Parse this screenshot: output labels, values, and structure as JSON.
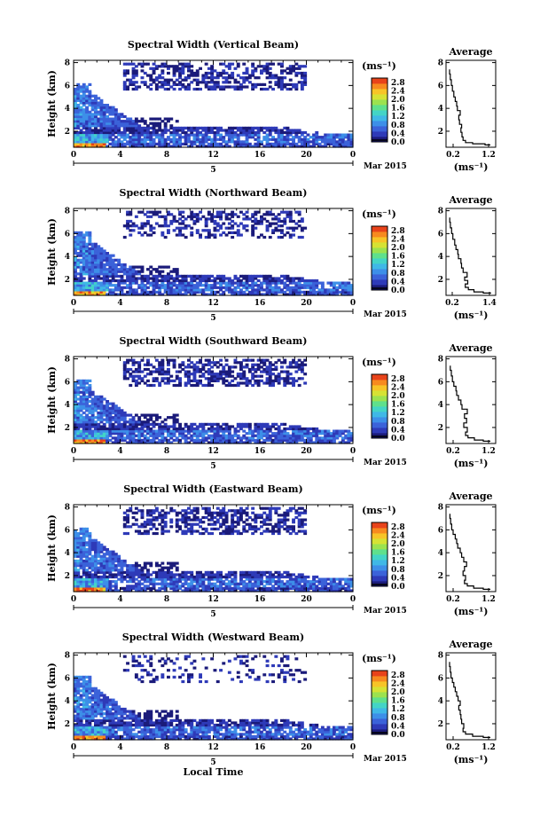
{
  "chart_data": [
    {
      "type": "heatmap",
      "title": "Spectral Width (Vertical Beam)",
      "ylabel": "Height (km)",
      "x_ticks": [
        "0",
        "4",
        "8",
        "12",
        "16",
        "20",
        "0"
      ],
      "xlim": [
        0,
        24
      ],
      "y_ticks": [
        "2",
        "4",
        "6",
        "8"
      ],
      "ylim": [
        0.6,
        8.2
      ],
      "date_day": "5",
      "date_label": "Mar 2015",
      "colorbar": {
        "unit": "(ms⁻¹)",
        "ticks": [
          "0.0",
          "0.4",
          "0.8",
          "1.2",
          "1.6",
          "2.0",
          "2.4",
          "2.8"
        ],
        "range": [
          0,
          3.0
        ]
      },
      "average": {
        "title": "Average",
        "xlabel": "(ms⁻¹)",
        "x_ticks": [
          "0.2",
          "1.2"
        ],
        "xlim": [
          0.0,
          1.4
        ],
        "y_ticks": [
          "2",
          "4",
          "6",
          "8"
        ],
        "ylim": [
          0.6,
          8.2
        ],
        "profile": [
          [
            1.25,
            0.8
          ],
          [
            1.1,
            0.9
          ],
          [
            0.75,
            1.0
          ],
          [
            0.55,
            1.2
          ],
          [
            0.48,
            1.5
          ],
          [
            0.45,
            1.9
          ],
          [
            0.42,
            2.3
          ],
          [
            0.44,
            2.6
          ],
          [
            0.38,
            3.0
          ],
          [
            0.36,
            3.4
          ],
          [
            0.4,
            3.8
          ],
          [
            0.32,
            4.2
          ],
          [
            0.3,
            4.6
          ],
          [
            0.26,
            5.0
          ],
          [
            0.22,
            5.5
          ],
          [
            0.18,
            6.0
          ],
          [
            0.15,
            6.5
          ],
          [
            0.12,
            7.0
          ],
          [
            0.1,
            7.4
          ]
        ]
      }
    },
    {
      "type": "heatmap",
      "title": "Spectral Width (Northward Beam)",
      "ylabel": "Height (km)",
      "x_ticks": [
        "0",
        "4",
        "8",
        "12",
        "16",
        "20",
        "0"
      ],
      "xlim": [
        0,
        24
      ],
      "y_ticks": [
        "2",
        "4",
        "6",
        "8"
      ],
      "ylim": [
        0.6,
        8.2
      ],
      "date_day": "5",
      "date_label": "Mar 2015",
      "colorbar": {
        "unit": "(ms⁻¹)",
        "ticks": [
          "0.0",
          "0.4",
          "0.8",
          "1.2",
          "1.6",
          "2.0",
          "2.4",
          "2.8"
        ],
        "range": [
          0,
          3.0
        ]
      },
      "average": {
        "title": "Average",
        "xlabel": "(ms⁻¹)",
        "x_ticks": [
          "0.2",
          "1.4"
        ],
        "xlim": [
          0.0,
          1.6
        ],
        "y_ticks": [
          "2",
          "4",
          "6",
          "8"
        ],
        "ylim": [
          0.6,
          8.2
        ],
        "profile": [
          [
            1.45,
            0.8
          ],
          [
            1.2,
            0.9
          ],
          [
            0.9,
            1.1
          ],
          [
            0.72,
            1.3
          ],
          [
            0.62,
            1.6
          ],
          [
            0.7,
            1.9
          ],
          [
            0.6,
            2.2
          ],
          [
            0.68,
            2.6
          ],
          [
            0.55,
            3.0
          ],
          [
            0.5,
            3.4
          ],
          [
            0.48,
            3.8
          ],
          [
            0.4,
            4.2
          ],
          [
            0.38,
            4.6
          ],
          [
            0.32,
            5.0
          ],
          [
            0.28,
            5.5
          ],
          [
            0.22,
            6.0
          ],
          [
            0.18,
            6.5
          ],
          [
            0.14,
            7.0
          ],
          [
            0.12,
            7.4
          ]
        ]
      }
    },
    {
      "type": "heatmap",
      "title": "Spectral Width (Southward Beam)",
      "ylabel": "Height (km)",
      "x_ticks": [
        "0",
        "4",
        "8",
        "12",
        "16",
        "20",
        "0"
      ],
      "xlim": [
        0,
        24
      ],
      "y_ticks": [
        "2",
        "4",
        "6",
        "8"
      ],
      "ylim": [
        0.6,
        8.2
      ],
      "date_day": "5",
      "date_label": "Mar 2015",
      "colorbar": {
        "unit": "(ms⁻¹)",
        "ticks": [
          "0.0",
          "0.4",
          "0.8",
          "1.2",
          "1.6",
          "2.0",
          "2.4",
          "2.8"
        ],
        "range": [
          0,
          3.0
        ]
      },
      "average": {
        "title": "Average",
        "xlabel": "(ms⁻¹)",
        "x_ticks": [
          "0.2",
          "1.2"
        ],
        "xlim": [
          0.0,
          1.4
        ],
        "y_ticks": [
          "2",
          "4",
          "6",
          "8"
        ],
        "ylim": [
          0.6,
          8.2
        ],
        "profile": [
          [
            1.25,
            0.8
          ],
          [
            1.05,
            0.9
          ],
          [
            0.8,
            1.1
          ],
          [
            0.62,
            1.3
          ],
          [
            0.55,
            1.6
          ],
          [
            0.6,
            2.0
          ],
          [
            0.5,
            2.4
          ],
          [
            0.58,
            2.8
          ],
          [
            0.52,
            3.2
          ],
          [
            0.6,
            3.6
          ],
          [
            0.45,
            4.0
          ],
          [
            0.42,
            4.4
          ],
          [
            0.35,
            4.8
          ],
          [
            0.3,
            5.2
          ],
          [
            0.28,
            5.6
          ],
          [
            0.22,
            6.0
          ],
          [
            0.18,
            6.5
          ],
          [
            0.15,
            7.0
          ],
          [
            0.12,
            7.4
          ]
        ]
      }
    },
    {
      "type": "heatmap",
      "title": "Spectral Width (Eastward Beam)",
      "ylabel": "Height (km)",
      "x_ticks": [
        "0",
        "4",
        "8",
        "12",
        "16",
        "20",
        "0"
      ],
      "xlim": [
        0,
        24
      ],
      "y_ticks": [
        "2",
        "4",
        "6",
        "8"
      ],
      "ylim": [
        0.6,
        8.2
      ],
      "date_day": "5",
      "date_label": "Mar 2015",
      "colorbar": {
        "unit": "(ms⁻¹)",
        "ticks": [
          "0.0",
          "0.4",
          "0.8",
          "1.2",
          "1.6",
          "2.0",
          "2.4",
          "2.8"
        ],
        "range": [
          0,
          3.0
        ]
      },
      "average": {
        "title": "Average",
        "xlabel": "(ms⁻¹)",
        "x_ticks": [
          "0.2",
          "1.2"
        ],
        "xlim": [
          0.0,
          1.4
        ],
        "y_ticks": [
          "2",
          "4",
          "6",
          "8"
        ],
        "ylim": [
          0.6,
          8.2
        ],
        "profile": [
          [
            1.25,
            0.8
          ],
          [
            1.05,
            0.9
          ],
          [
            0.78,
            1.1
          ],
          [
            0.6,
            1.3
          ],
          [
            0.52,
            1.6
          ],
          [
            0.55,
            2.0
          ],
          [
            0.48,
            2.4
          ],
          [
            0.52,
            2.8
          ],
          [
            0.58,
            3.2
          ],
          [
            0.5,
            3.6
          ],
          [
            0.44,
            4.0
          ],
          [
            0.4,
            4.4
          ],
          [
            0.33,
            4.8
          ],
          [
            0.3,
            5.2
          ],
          [
            0.26,
            5.6
          ],
          [
            0.2,
            6.0
          ],
          [
            0.16,
            6.5
          ],
          [
            0.13,
            7.0
          ],
          [
            0.11,
            7.4
          ]
        ]
      }
    },
    {
      "type": "heatmap",
      "title": "Spectral Width (Westward Beam)",
      "ylabel": "Height (km)",
      "x_ticks": [
        "0",
        "4",
        "8",
        "12",
        "16",
        "20",
        "0"
      ],
      "xlim": [
        0,
        24
      ],
      "y_ticks": [
        "2",
        "4",
        "6",
        "8"
      ],
      "ylim": [
        0.6,
        8.2
      ],
      "date_day": "5",
      "date_label": "Mar 2015",
      "xlabel": "Local Time",
      "colorbar": {
        "unit": "(ms⁻¹)",
        "ticks": [
          "0.0",
          "0.4",
          "0.8",
          "1.2",
          "1.6",
          "2.0",
          "2.4",
          "2.8"
        ],
        "range": [
          0,
          3.0
        ]
      },
      "average": {
        "title": "Average",
        "xlabel": "(ms⁻¹)",
        "x_ticks": [
          "0.2",
          "1.2"
        ],
        "xlim": [
          0.0,
          1.4
        ],
        "y_ticks": [
          "2",
          "4",
          "6",
          "8"
        ],
        "ylim": [
          0.6,
          8.2
        ],
        "profile": [
          [
            1.25,
            0.8
          ],
          [
            1.05,
            0.9
          ],
          [
            0.75,
            1.1
          ],
          [
            0.55,
            1.3
          ],
          [
            0.48,
            1.6
          ],
          [
            0.5,
            2.0
          ],
          [
            0.44,
            2.4
          ],
          [
            0.42,
            2.8
          ],
          [
            0.4,
            3.2
          ],
          [
            0.36,
            3.6
          ],
          [
            0.4,
            4.0
          ],
          [
            0.34,
            4.4
          ],
          [
            0.3,
            4.8
          ],
          [
            0.26,
            5.2
          ],
          [
            0.22,
            5.6
          ],
          [
            0.18,
            6.0
          ],
          [
            0.14,
            6.5
          ],
          [
            0.12,
            7.0
          ],
          [
            0.1,
            7.4
          ]
        ]
      }
    }
  ],
  "colormap": [
    "#1b1b7a",
    "#2e3ab8",
    "#3b62d9",
    "#3d8fe8",
    "#3fb8e6",
    "#43d4c6",
    "#5fe08c",
    "#9ce24f",
    "#d6e234",
    "#f7c427",
    "#f78a1f",
    "#e8431a"
  ]
}
